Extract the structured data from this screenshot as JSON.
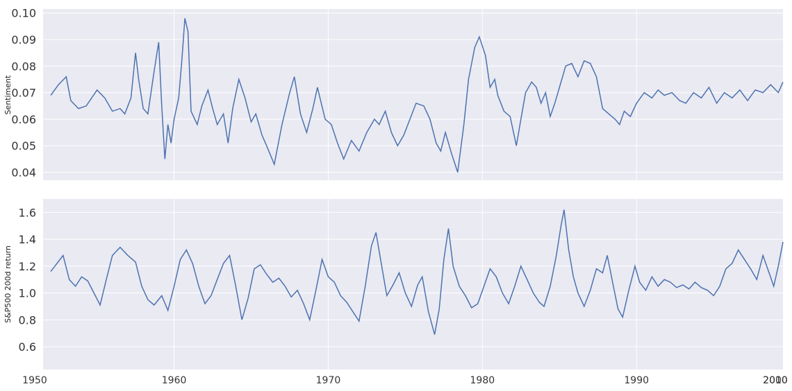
{
  "chart_data": [
    {
      "type": "line",
      "title": "",
      "xlabel": "",
      "ylabel": "Sentiment",
      "xlim": [
        1951.5,
        1999.5
      ],
      "ylim": [
        0.037,
        0.1015
      ],
      "x_ticks": [
        1960,
        1970,
        1980,
        1990,
        2000,
        2010
      ],
      "y_ticks": [
        "0.04",
        "0.05",
        "0.06",
        "0.07",
        "0.08",
        "0.09",
        "0.10"
      ],
      "grid": true,
      "series": [
        {
          "color": "#4c72b0",
          "points": [
            [
              1952.0,
              0.069
            ],
            [
              1952.5,
              0.073
            ],
            [
              1953.0,
              0.076
            ],
            [
              1953.3,
              0.067
            ],
            [
              1953.8,
              0.064
            ],
            [
              1954.3,
              0.065
            ],
            [
              1955.0,
              0.071
            ],
            [
              1955.5,
              0.068
            ],
            [
              1956.0,
              0.063
            ],
            [
              1956.5,
              0.064
            ],
            [
              1956.8,
              0.062
            ],
            [
              1957.2,
              0.068
            ],
            [
              1957.5,
              0.085
            ],
            [
              1957.7,
              0.075
            ],
            [
              1958.0,
              0.064
            ],
            [
              1958.3,
              0.062
            ],
            [
              1958.7,
              0.078
            ],
            [
              1959.0,
              0.089
            ],
            [
              1959.2,
              0.065
            ],
            [
              1959.4,
              0.045
            ],
            [
              1959.6,
              0.058
            ],
            [
              1959.8,
              0.051
            ],
            [
              1960.0,
              0.06
            ],
            [
              1960.3,
              0.068
            ],
            [
              1960.5,
              0.082
            ],
            [
              1960.7,
              0.098
            ],
            [
              1960.9,
              0.093
            ],
            [
              1961.1,
              0.063
            ],
            [
              1961.5,
              0.058
            ],
            [
              1961.8,
              0.065
            ],
            [
              1962.2,
              0.071
            ],
            [
              1962.5,
              0.064
            ],
            [
              1962.8,
              0.058
            ],
            [
              1963.2,
              0.062
            ],
            [
              1963.5,
              0.051
            ],
            [
              1963.8,
              0.064
            ],
            [
              1964.2,
              0.075
            ],
            [
              1964.6,
              0.068
            ],
            [
              1965.0,
              0.059
            ],
            [
              1965.3,
              0.062
            ],
            [
              1965.7,
              0.054
            ],
            [
              1966.0,
              0.05
            ],
            [
              1966.5,
              0.043
            ],
            [
              1967.0,
              0.058
            ],
            [
              1967.5,
              0.07
            ],
            [
              1967.8,
              0.076
            ],
            [
              1968.2,
              0.062
            ],
            [
              1968.6,
              0.055
            ],
            [
              1969.0,
              0.064
            ],
            [
              1969.3,
              0.072
            ],
            [
              1969.8,
              0.06
            ],
            [
              1970.2,
              0.058
            ],
            [
              1970.6,
              0.051
            ],
            [
              1971.0,
              0.045
            ],
            [
              1971.5,
              0.052
            ],
            [
              1972.0,
              0.048
            ],
            [
              1972.5,
              0.055
            ],
            [
              1973.0,
              0.06
            ],
            [
              1973.3,
              0.058
            ],
            [
              1973.7,
              0.063
            ],
            [
              1974.1,
              0.055
            ],
            [
              1974.5,
              0.05
            ],
            [
              1974.9,
              0.054
            ],
            [
              1975.3,
              0.06
            ],
            [
              1975.7,
              0.066
            ],
            [
              1976.2,
              0.065
            ],
            [
              1976.6,
              0.06
            ],
            [
              1977.0,
              0.051
            ],
            [
              1977.3,
              0.048
            ],
            [
              1977.6,
              0.055
            ],
            [
              1978.0,
              0.047
            ],
            [
              1978.4,
              0.04
            ],
            [
              1978.8,
              0.058
            ],
            [
              1979.1,
              0.075
            ],
            [
              1979.5,
              0.087
            ],
            [
              1979.8,
              0.091
            ],
            [
              1980.2,
              0.084
            ],
            [
              1980.5,
              0.072
            ],
            [
              1980.8,
              0.075
            ],
            [
              1981.0,
              0.069
            ],
            [
              1981.4,
              0.063
            ],
            [
              1981.8,
              0.061
            ],
            [
              1982.2,
              0.05
            ],
            [
              1982.5,
              0.06
            ],
            [
              1982.8,
              0.07
            ],
            [
              1983.2,
              0.074
            ],
            [
              1983.5,
              0.072
            ],
            [
              1983.8,
              0.066
            ],
            [
              1984.1,
              0.07
            ],
            [
              1984.4,
              0.061
            ],
            [
              1984.7,
              0.066
            ],
            [
              1985.0,
              0.072
            ],
            [
              1985.4,
              0.08
            ],
            [
              1985.8,
              0.081
            ],
            [
              1986.2,
              0.076
            ],
            [
              1986.6,
              0.082
            ],
            [
              1987.0,
              0.081
            ],
            [
              1987.4,
              0.076
            ],
            [
              1987.8,
              0.064
            ],
            [
              1988.2,
              0.062
            ],
            [
              1988.6,
              0.06
            ],
            [
              1988.9,
              0.058
            ],
            [
              1989.2,
              0.063
            ],
            [
              1989.6,
              0.061
            ],
            [
              1990.0,
              0.066
            ],
            [
              1990.5,
              0.07
            ],
            [
              1991.0,
              0.068
            ],
            [
              1991.4,
              0.071
            ],
            [
              1991.8,
              0.069
            ],
            [
              1992.3,
              0.07
            ],
            [
              1992.8,
              0.067
            ],
            [
              1993.2,
              0.066
            ],
            [
              1993.7,
              0.07
            ],
            [
              1994.2,
              0.068
            ],
            [
              1994.7,
              0.072
            ],
            [
              1995.2,
              0.066
            ],
            [
              1995.7,
              0.07
            ],
            [
              1996.2,
              0.068
            ],
            [
              1996.7,
              0.071
            ],
            [
              1997.2,
              0.067
            ],
            [
              1997.7,
              0.071
            ],
            [
              1998.2,
              0.07
            ],
            [
              1998.7,
              0.073
            ],
            [
              1999.2,
              0.07
            ],
            [
              1999.5,
              0.074
            ]
          ]
        }
      ]
    },
    {
      "type": "line",
      "title": "",
      "xlabel": "",
      "ylabel": "S&P500 200d return",
      "xlim": [
        1951.5,
        1999.5
      ],
      "ylim": [
        0.43,
        1.7
      ],
      "x_ticks": [
        1950,
        1960,
        1970,
        1980,
        1990,
        2000,
        2010
      ],
      "y_ticks": [
        "0.6",
        "0.8",
        "1.0",
        "1.2",
        "1.4",
        "1.6"
      ],
      "grid": true,
      "series": [
        {
          "color": "#4c72b0",
          "points": [
            [
              1952.0,
              1.16
            ],
            [
              1952.4,
              1.22
            ],
            [
              1952.8,
              1.28
            ],
            [
              1953.2,
              1.1
            ],
            [
              1953.6,
              1.05
            ],
            [
              1954.0,
              1.12
            ],
            [
              1954.4,
              1.09
            ],
            [
              1954.8,
              1.0
            ],
            [
              1955.2,
              0.91
            ],
            [
              1955.6,
              1.1
            ],
            [
              1956.0,
              1.28
            ],
            [
              1956.5,
              1.34
            ],
            [
              1957.0,
              1.28
            ],
            [
              1957.5,
              1.23
            ],
            [
              1957.9,
              1.05
            ],
            [
              1958.3,
              0.95
            ],
            [
              1958.7,
              0.91
            ],
            [
              1959.2,
              0.98
            ],
            [
              1959.6,
              0.87
            ],
            [
              1960.0,
              1.05
            ],
            [
              1960.4,
              1.25
            ],
            [
              1960.8,
              1.32
            ],
            [
              1961.2,
              1.22
            ],
            [
              1961.6,
              1.05
            ],
            [
              1962.0,
              0.92
            ],
            [
              1962.4,
              0.98
            ],
            [
              1962.8,
              1.1
            ],
            [
              1963.2,
              1.22
            ],
            [
              1963.6,
              1.28
            ],
            [
              1964.0,
              1.05
            ],
            [
              1964.4,
              0.8
            ],
            [
              1964.8,
              0.96
            ],
            [
              1965.2,
              1.18
            ],
            [
              1965.6,
              1.21
            ],
            [
              1966.0,
              1.14
            ],
            [
              1966.4,
              1.08
            ],
            [
              1966.8,
              1.11
            ],
            [
              1967.2,
              1.05
            ],
            [
              1967.6,
              0.97
            ],
            [
              1968.0,
              1.02
            ],
            [
              1968.4,
              0.92
            ],
            [
              1968.8,
              0.8
            ],
            [
              1969.2,
              1.02
            ],
            [
              1969.6,
              1.25
            ],
            [
              1970.0,
              1.12
            ],
            [
              1970.4,
              1.08
            ],
            [
              1970.8,
              0.98
            ],
            [
              1971.2,
              0.93
            ],
            [
              1971.6,
              0.86
            ],
            [
              1972.0,
              0.79
            ],
            [
              1972.4,
              1.05
            ],
            [
              1972.8,
              1.35
            ],
            [
              1973.1,
              1.45
            ],
            [
              1973.5,
              1.18
            ],
            [
              1973.8,
              0.98
            ],
            [
              1974.2,
              1.06
            ],
            [
              1974.6,
              1.15
            ],
            [
              1975.0,
              1.0
            ],
            [
              1975.4,
              0.9
            ],
            [
              1975.8,
              1.06
            ],
            [
              1976.1,
              1.12
            ],
            [
              1976.5,
              0.86
            ],
            [
              1976.9,
              0.69
            ],
            [
              1977.2,
              0.88
            ],
            [
              1977.5,
              1.25
            ],
            [
              1977.8,
              1.48
            ],
            [
              1978.1,
              1.2
            ],
            [
              1978.5,
              1.05
            ],
            [
              1978.9,
              0.98
            ],
            [
              1979.3,
              0.89
            ],
            [
              1979.7,
              0.92
            ],
            [
              1980.1,
              1.05
            ],
            [
              1980.5,
              1.18
            ],
            [
              1980.9,
              1.12
            ],
            [
              1981.3,
              1.0
            ],
            [
              1981.7,
              0.92
            ],
            [
              1982.1,
              1.05
            ],
            [
              1982.5,
              1.2
            ],
            [
              1982.9,
              1.1
            ],
            [
              1983.3,
              1.0
            ],
            [
              1983.7,
              0.93
            ],
            [
              1984.0,
              0.9
            ],
            [
              1984.4,
              1.05
            ],
            [
              1984.8,
              1.28
            ],
            [
              1985.1,
              1.5
            ],
            [
              1985.3,
              1.62
            ],
            [
              1985.6,
              1.32
            ],
            [
              1985.9,
              1.12
            ],
            [
              1986.2,
              1.0
            ],
            [
              1986.6,
              0.9
            ],
            [
              1987.0,
              1.02
            ],
            [
              1987.4,
              1.18
            ],
            [
              1987.8,
              1.15
            ],
            [
              1988.1,
              1.28
            ],
            [
              1988.5,
              1.05
            ],
            [
              1988.8,
              0.88
            ],
            [
              1989.1,
              0.82
            ],
            [
              1989.5,
              1.02
            ],
            [
              1989.9,
              1.2
            ],
            [
              1990.2,
              1.08
            ],
            [
              1990.6,
              1.02
            ],
            [
              1991.0,
              1.12
            ],
            [
              1991.4,
              1.05
            ],
            [
              1991.8,
              1.1
            ],
            [
              1992.2,
              1.08
            ],
            [
              1992.6,
              1.04
            ],
            [
              1993.0,
              1.06
            ],
            [
              1993.4,
              1.03
            ],
            [
              1993.8,
              1.08
            ],
            [
              1994.2,
              1.04
            ],
            [
              1994.6,
              1.02
            ],
            [
              1995.0,
              0.98
            ],
            [
              1995.4,
              1.05
            ],
            [
              1995.8,
              1.18
            ],
            [
              1996.2,
              1.22
            ],
            [
              1996.6,
              1.32
            ],
            [
              1997.0,
              1.25
            ],
            [
              1997.4,
              1.18
            ],
            [
              1997.8,
              1.1
            ],
            [
              1998.2,
              1.28
            ],
            [
              1998.6,
              1.15
            ],
            [
              1998.9,
              1.05
            ],
            [
              1999.2,
              1.2
            ],
            [
              1999.5,
              1.38
            ]
          ]
        }
      ]
    }
  ]
}
